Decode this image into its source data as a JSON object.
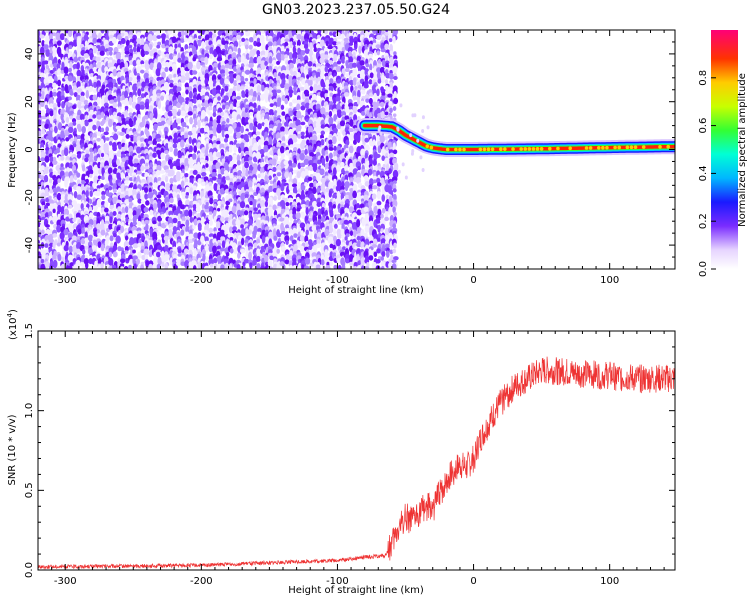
{
  "title": "GN03.2023.237.05.50.G24",
  "colors": {
    "snr_line": "#ee3333",
    "spectrogram_noise": "#7a2cff",
    "axis": "#000000"
  },
  "chart_data": [
    {
      "type": "heatmap",
      "xlabel": "Height of straight line (km)",
      "ylabel": "Frequency (Hz)",
      "xlim": [
        -320,
        148
      ],
      "ylim": [
        -50,
        50
      ],
      "x_ticks": [
        -300,
        -200,
        -100,
        0,
        100
      ],
      "y_ticks": [
        -40,
        -20,
        0,
        20,
        40
      ],
      "x_tick_labels": [
        "-300",
        "-200",
        "-100",
        "0",
        "100"
      ],
      "y_tick_labels": [
        "-40",
        "-20",
        "0",
        "20",
        "40"
      ],
      "noise_region_x": [
        -320,
        -62
      ],
      "peak_track": {
        "x": [
          -80,
          -70,
          -60,
          -55,
          -50,
          -45,
          -40,
          -35,
          -30,
          -25,
          -20,
          0,
          50,
          100,
          148
        ],
        "y": [
          10,
          10,
          9.5,
          8,
          6,
          4.5,
          3,
          1.5,
          0.7,
          0.3,
          0,
          0,
          0.3,
          0.8,
          1.2
        ]
      },
      "colorbar": {
        "label": "Normalized spectral amplitude",
        "range": [
          0,
          1
        ],
        "ticks": [
          0,
          0.2,
          0.4,
          0.6,
          0.8
        ],
        "tick_labels": [
          "0.0",
          "0.2",
          "0.4",
          "0.6",
          "0.8"
        ]
      }
    },
    {
      "type": "line",
      "xlabel": "Height of straight line (km)",
      "ylabel": "SNR (10 * v/v)",
      "y_scale_label": "(x10",
      "y_scale_exponent": "4",
      "y_scale_close": ")",
      "xlim": [
        -320,
        148
      ],
      "ylim": [
        0,
        1.5
      ],
      "x_ticks": [
        -300,
        -200,
        -100,
        0,
        100
      ],
      "y_ticks": [
        0,
        0.5,
        1.0,
        1.5
      ],
      "x_tick_labels": [
        "-300",
        "-200",
        "-100",
        "0",
        "100"
      ],
      "y_tick_labels": [
        "0.0",
        "0.5",
        "1.0",
        "1.5"
      ],
      "series": [
        {
          "x": [
            -320,
            -250,
            -200,
            -150,
            -100,
            -80,
            -65,
            -60,
            -55,
            -50,
            -45,
            -40,
            -35,
            -30,
            -25,
            -20,
            -15,
            -10,
            -5,
            0,
            5,
            10,
            15,
            20,
            25,
            30,
            40,
            50,
            60,
            80,
            100,
            120,
            148
          ],
          "y": [
            0.02,
            0.025,
            0.03,
            0.045,
            0.06,
            0.08,
            0.09,
            0.16,
            0.26,
            0.34,
            0.3,
            0.36,
            0.4,
            0.38,
            0.48,
            0.55,
            0.62,
            0.66,
            0.64,
            0.7,
            0.82,
            0.9,
            0.98,
            1.05,
            1.1,
            1.15,
            1.2,
            1.25,
            1.25,
            1.23,
            1.22,
            1.2,
            1.2
          ]
        }
      ]
    }
  ]
}
